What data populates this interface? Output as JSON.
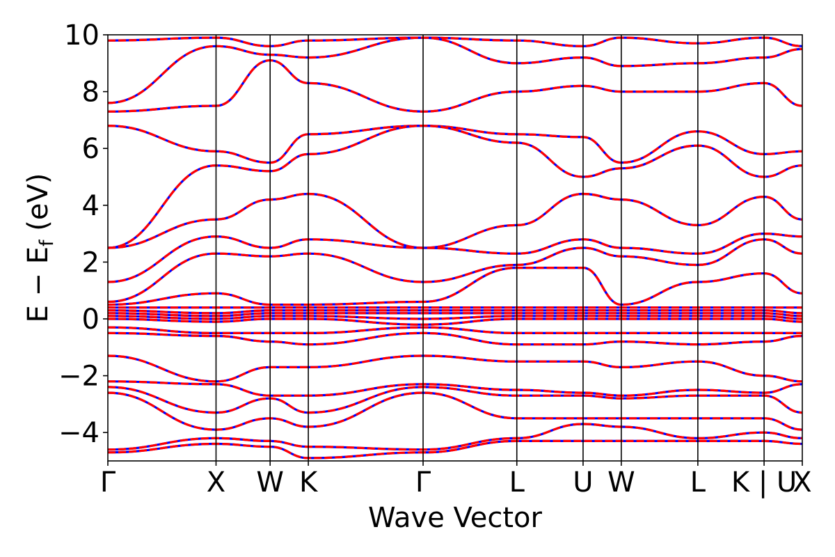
{
  "chart_data": {
    "type": "line",
    "title": "",
    "xlabel": "Wave Vector",
    "ylabel_main": "E − E",
    "ylabel_sub": "f",
    "ylabel_unit": " (eV)",
    "ylim": [
      -5,
      10
    ],
    "yticks": [
      {
        "value": -4,
        "label": "−4"
      },
      {
        "value": -2,
        "label": "−2"
      },
      {
        "value": 0,
        "label": "0"
      },
      {
        "value": 2,
        "label": "2"
      },
      {
        "value": 4,
        "label": "4"
      },
      {
        "value": 6,
        "label": "6"
      },
      {
        "value": 8,
        "label": "8"
      },
      {
        "value": 10,
        "label": "10"
      }
    ],
    "grid": false,
    "xlim": [
      0,
      4.853
    ],
    "kpoints": [
      {
        "label": "Γ",
        "x": 0.0
      },
      {
        "label": "X",
        "x": 0.756
      },
      {
        "label": "W",
        "x": 1.134
      },
      {
        "label": "K",
        "x": 1.401
      },
      {
        "label": "Γ",
        "x": 2.203
      },
      {
        "label": "L",
        "x": 2.858
      },
      {
        "label": "U",
        "x": 3.321
      },
      {
        "label": "W",
        "x": 3.588
      },
      {
        "label": "L",
        "x": 4.123
      },
      {
        "label": "K | U",
        "x": 4.586
      },
      {
        "label": "X",
        "x": 4.853
      }
    ],
    "series_styles": {
      "base_color": "#0000ff",
      "overlay_color": "#ff0000",
      "overlay_dash": "dashed"
    },
    "bands": [
      [
        9.8,
        9.9,
        9.6,
        9.8,
        9.9,
        9.8,
        9.6,
        9.9,
        9.7,
        9.9,
        9.6
      ],
      [
        7.6,
        9.6,
        9.3,
        9.2,
        9.9,
        9.0,
        9.2,
        8.9,
        9.0,
        9.2,
        9.5
      ],
      [
        7.3,
        7.5,
        9.1,
        8.3,
        7.3,
        8.0,
        8.2,
        8.0,
        8.0,
        8.3,
        7.5
      ],
      [
        6.8,
        5.9,
        5.5,
        6.5,
        6.8,
        6.5,
        6.4,
        5.5,
        6.6,
        5.8,
        5.9
      ],
      [
        2.5,
        5.4,
        5.2,
        5.8,
        6.8,
        6.2,
        5.0,
        5.3,
        6.1,
        5.0,
        5.4
      ],
      [
        2.5,
        3.5,
        4.2,
        4.4,
        2.5,
        3.3,
        4.4,
        4.2,
        3.3,
        4.3,
        3.5
      ],
      [
        1.3,
        2.9,
        2.5,
        2.8,
        2.5,
        2.3,
        2.8,
        2.5,
        2.3,
        3.0,
        2.9
      ],
      [
        0.6,
        2.3,
        2.2,
        2.3,
        1.3,
        1.9,
        2.5,
        2.2,
        1.9,
        2.8,
        2.3
      ],
      [
        0.5,
        0.9,
        0.5,
        0.5,
        0.6,
        1.8,
        1.8,
        0.5,
        1.3,
        1.6,
        0.9
      ],
      [
        0.4,
        0.4,
        0.4,
        0.4,
        0.4,
        0.4,
        0.4,
        0.4,
        0.4,
        0.4,
        0.4
      ],
      [
        0.3,
        0.2,
        0.3,
        0.3,
        0.3,
        0.3,
        0.3,
        0.3,
        0.3,
        0.3,
        0.2
      ],
      [
        0.2,
        0.1,
        0.2,
        0.2,
        0.2,
        0.2,
        0.2,
        0.2,
        0.2,
        0.2,
        0.1
      ],
      [
        0.1,
        0.0,
        0.1,
        0.1,
        0.0,
        0.1,
        0.1,
        0.1,
        0.1,
        0.1,
        0.0
      ],
      [
        0.0,
        -0.1,
        0.0,
        0.0,
        -0.2,
        0.0,
        0.0,
        0.0,
        0.0,
        0.0,
        -0.1
      ],
      [
        -0.3,
        -0.5,
        -0.5,
        -0.5,
        -0.3,
        -0.5,
        -0.5,
        -0.5,
        -0.5,
        -0.5,
        -0.5
      ],
      [
        -0.5,
        -0.6,
        -0.8,
        -0.9,
        -0.5,
        -0.9,
        -0.9,
        -0.8,
        -0.9,
        -0.8,
        -0.6
      ],
      [
        -1.3,
        -2.2,
        -1.7,
        -1.7,
        -1.3,
        -1.5,
        -1.5,
        -1.7,
        -1.5,
        -2.0,
        -2.2
      ],
      [
        -2.2,
        -2.3,
        -2.7,
        -2.7,
        -2.3,
        -2.5,
        -2.6,
        -2.7,
        -2.5,
        -2.6,
        -2.3
      ],
      [
        -2.4,
        -3.3,
        -2.8,
        -3.3,
        -2.4,
        -2.7,
        -2.7,
        -2.8,
        -2.7,
        -2.7,
        -3.3
      ],
      [
        -2.6,
        -3.9,
        -3.5,
        -3.8,
        -2.6,
        -3.5,
        -3.5,
        -3.5,
        -3.5,
        -3.5,
        -3.9
      ],
      [
        -4.6,
        -4.2,
        -4.3,
        -4.5,
        -4.6,
        -4.2,
        -3.7,
        -3.8,
        -4.2,
        -4.0,
        -4.2
      ],
      [
        -4.7,
        -4.4,
        -4.5,
        -4.9,
        -4.7,
        -4.3,
        -4.3,
        -4.3,
        -4.3,
        -4.3,
        -4.4
      ]
    ]
  }
}
